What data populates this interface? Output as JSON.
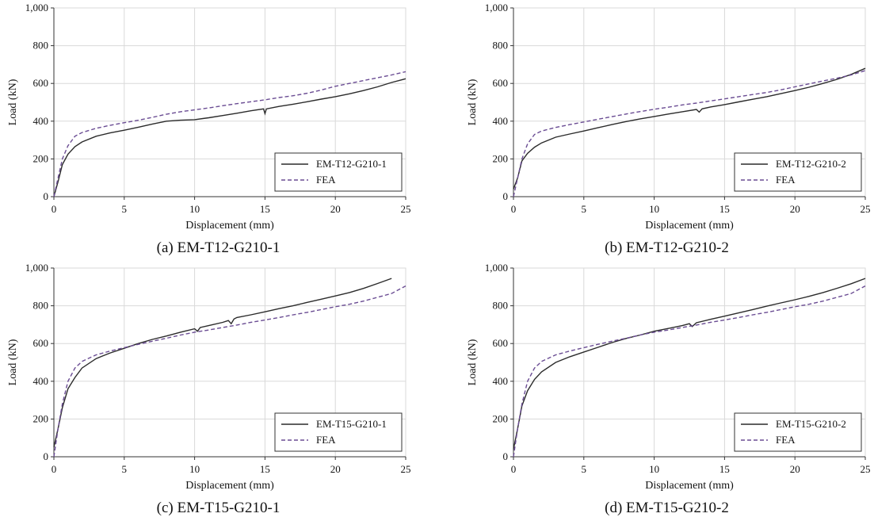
{
  "palette": {
    "test": "#2b2b2b",
    "fea": "#6a4c93",
    "grid": "#d9d9d9",
    "axis": "#333333"
  },
  "chart_data": [
    {
      "type": "line",
      "caption": "(a) EM-T12-G210-1",
      "xlabel": "Displacement (mm)",
      "ylabel": "Load (kN)",
      "xlim": [
        0,
        25
      ],
      "ylim": [
        0,
        1000
      ],
      "xticks": [
        "0",
        "5",
        "10",
        "15",
        "20",
        "25"
      ],
      "yticks": [
        "0",
        "200",
        "400",
        "600",
        "800",
        "1,000"
      ],
      "grid": true,
      "legend": "bottom-right",
      "series": [
        {
          "name": "EM-T12-G210-1",
          "style": "solid",
          "x": [
            0,
            0.3,
            0.6,
            1,
            1.5,
            2,
            3,
            4,
            5,
            6,
            7,
            8,
            9,
            10,
            11,
            12,
            13,
            14,
            14.9,
            15,
            15.1,
            16,
            17,
            18,
            19,
            20,
            21,
            22,
            23,
            24,
            25
          ],
          "y": [
            0,
            80,
            170,
            225,
            265,
            290,
            320,
            338,
            352,
            368,
            385,
            400,
            405,
            408,
            418,
            430,
            442,
            455,
            465,
            440,
            465,
            478,
            490,
            503,
            517,
            530,
            545,
            562,
            582,
            605,
            625
          ]
        },
        {
          "name": "FEA",
          "style": "dashed",
          "x": [
            0,
            0.3,
            0.6,
            1,
            1.5,
            2,
            3,
            4,
            5,
            6,
            7,
            8,
            9,
            10,
            11,
            12,
            13,
            14,
            15,
            16,
            17,
            18,
            19,
            20,
            21,
            22,
            23,
            24,
            25
          ],
          "y": [
            0,
            100,
            200,
            270,
            320,
            340,
            362,
            378,
            392,
            405,
            420,
            437,
            450,
            460,
            470,
            482,
            493,
            503,
            513,
            525,
            535,
            548,
            565,
            585,
            600,
            615,
            630,
            645,
            662
          ]
        }
      ]
    },
    {
      "type": "line",
      "caption": "(b) EM-T12-G210-2",
      "xlabel": "Displacement (mm)",
      "ylabel": "Load (kN)",
      "xlim": [
        0,
        25
      ],
      "ylim": [
        0,
        1000
      ],
      "xticks": [
        "0",
        "5",
        "10",
        "15",
        "20",
        "25"
      ],
      "yticks": [
        "0",
        "200",
        "400",
        "600",
        "800",
        "1,000"
      ],
      "grid": true,
      "legend": "bottom-right",
      "series": [
        {
          "name": "EM-T12-G210-2",
          "style": "solid",
          "x": [
            0,
            0.3,
            0.6,
            1,
            1.5,
            2,
            3,
            4,
            5,
            6,
            7,
            8,
            9,
            10,
            11,
            12,
            13,
            13.2,
            13.4,
            14,
            15,
            16,
            17,
            18,
            19,
            20,
            21,
            22,
            23,
            24,
            25
          ],
          "y": [
            40,
            100,
            190,
            230,
            262,
            285,
            315,
            332,
            348,
            365,
            382,
            398,
            412,
            425,
            438,
            450,
            462,
            448,
            465,
            475,
            488,
            502,
            516,
            530,
            546,
            562,
            580,
            600,
            622,
            648,
            680
          ]
        },
        {
          "name": "FEA",
          "style": "dashed",
          "x": [
            0,
            0.3,
            0.6,
            1,
            1.5,
            2,
            3,
            4,
            5,
            6,
            7,
            8,
            9,
            10,
            11,
            12,
            13,
            14,
            15,
            16,
            17,
            18,
            19,
            20,
            21,
            22,
            23,
            24,
            25
          ],
          "y": [
            0,
            100,
            200,
            280,
            330,
            348,
            367,
            382,
            396,
            410,
            424,
            438,
            451,
            463,
            474,
            486,
            496,
            507,
            518,
            530,
            541,
            552,
            566,
            582,
            598,
            613,
            628,
            645,
            668
          ]
        }
      ]
    },
    {
      "type": "line",
      "caption": "(c) EM-T15-G210-1",
      "xlabel": "Displacement (mm)",
      "ylabel": "Load (kN)",
      "xlim": [
        0,
        25
      ],
      "ylim": [
        0,
        1000
      ],
      "xticks": [
        "0",
        "5",
        "10",
        "15",
        "20",
        "25"
      ],
      "yticks": [
        "0",
        "200",
        "400",
        "600",
        "800",
        "1,000"
      ],
      "grid": true,
      "legend": "bottom-right",
      "series": [
        {
          "name": "EM-T15-G210-1",
          "style": "solid",
          "x": [
            0,
            0.3,
            0.6,
            1,
            1.5,
            2,
            3,
            4,
            5,
            6,
            7,
            8,
            9,
            10,
            10.2,
            10.4,
            11,
            12,
            12.4,
            12.6,
            12.8,
            13,
            14,
            15,
            16,
            17,
            18,
            19,
            20,
            21,
            22,
            23,
            24
          ],
          "y": [
            50,
            150,
            260,
            360,
            420,
            470,
            520,
            550,
            575,
            600,
            622,
            640,
            660,
            678,
            665,
            685,
            695,
            712,
            722,
            705,
            730,
            738,
            752,
            768,
            785,
            800,
            818,
            835,
            852,
            870,
            892,
            918,
            945
          ]
        },
        {
          "name": "FEA",
          "style": "dashed",
          "x": [
            0,
            0.3,
            0.6,
            1,
            1.5,
            2,
            3,
            4,
            5,
            6,
            7,
            8,
            9,
            10,
            11,
            12,
            13,
            14,
            15,
            16,
            17,
            18,
            19,
            20,
            21,
            22,
            23,
            24,
            25
          ],
          "y": [
            0,
            150,
            280,
            400,
            470,
            505,
            540,
            560,
            578,
            596,
            612,
            628,
            645,
            660,
            672,
            685,
            698,
            712,
            725,
            738,
            752,
            765,
            780,
            795,
            808,
            825,
            845,
            865,
            905
          ]
        }
      ]
    },
    {
      "type": "line",
      "caption": "(d) EM-T15-G210-2",
      "xlabel": "Displacement (mm)",
      "ylabel": "Load (kN)",
      "xlim": [
        0,
        25
      ],
      "ylim": [
        0,
        1000
      ],
      "xticks": [
        "0",
        "5",
        "10",
        "15",
        "20",
        "25"
      ],
      "yticks": [
        "0",
        "200",
        "400",
        "600",
        "800",
        "1,000"
      ],
      "grid": true,
      "legend": "bottom-right",
      "series": [
        {
          "name": "EM-T15-G210-2",
          "style": "solid",
          "x": [
            0,
            0.3,
            0.6,
            1,
            1.5,
            2,
            3,
            4,
            5,
            6,
            7,
            8,
            9,
            10,
            11,
            12,
            12.5,
            12.7,
            13,
            14,
            15,
            16,
            17,
            18,
            19,
            20,
            21,
            22,
            23,
            24,
            25
          ],
          "y": [
            40,
            150,
            270,
            350,
            410,
            450,
            500,
            530,
            555,
            580,
            605,
            627,
            645,
            665,
            680,
            695,
            705,
            690,
            710,
            728,
            745,
            762,
            780,
            798,
            815,
            832,
            850,
            870,
            893,
            917,
            945
          ]
        },
        {
          "name": "FEA",
          "style": "dashed",
          "x": [
            0,
            0.3,
            0.6,
            1,
            1.5,
            2,
            3,
            4,
            5,
            6,
            7,
            8,
            9,
            10,
            11,
            12,
            13,
            14,
            15,
            16,
            17,
            18,
            19,
            20,
            21,
            22,
            23,
            24,
            25
          ],
          "y": [
            0,
            150,
            280,
            400,
            470,
            505,
            540,
            560,
            578,
            596,
            612,
            628,
            645,
            660,
            672,
            685,
            698,
            712,
            725,
            738,
            752,
            765,
            780,
            795,
            808,
            825,
            845,
            865,
            905
          ]
        }
      ]
    }
  ]
}
